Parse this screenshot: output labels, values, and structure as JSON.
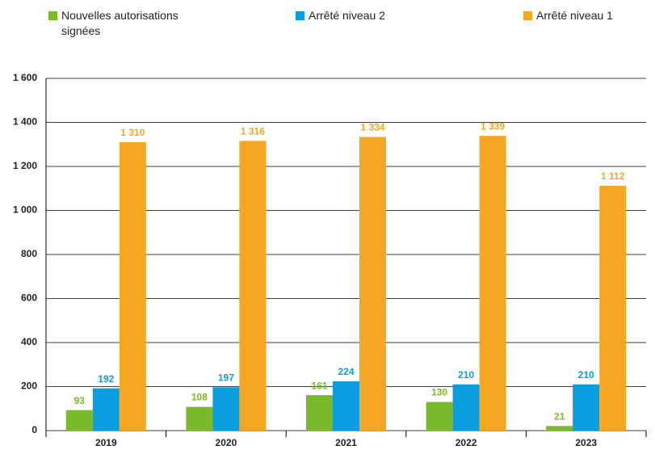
{
  "chart_data": {
    "type": "bar",
    "categories": [
      "2019",
      "2020",
      "2021",
      "2022",
      "2023"
    ],
    "series": [
      {
        "name": "Nouvelles autorisations signées",
        "color": "#7ab929",
        "values": [
          93,
          108,
          161,
          130,
          21
        ]
      },
      {
        "name": "Arrêté niveau 2",
        "color": "#0a9ee0",
        "values": [
          192,
          197,
          224,
          210,
          210
        ]
      },
      {
        "name": "Arrêté niveau 1",
        "color": "#f5a623",
        "values": [
          1310,
          1316,
          1334,
          1339,
          1112
        ],
        "value_labels": [
          "1 310",
          "1 316",
          "1 334",
          "1 339",
          "1 112"
        ]
      }
    ],
    "ylim": [
      0,
      1600
    ],
    "yticks": [
      0,
      200,
      400,
      600,
      800,
      {
        "value": 1000,
        "label": "1 000"
      },
      {
        "value": 1200,
        "label": "1 200"
      },
      {
        "value": 1400,
        "label": "1 400"
      },
      {
        "value": 1600,
        "label": "1 600"
      }
    ],
    "grid": true
  }
}
